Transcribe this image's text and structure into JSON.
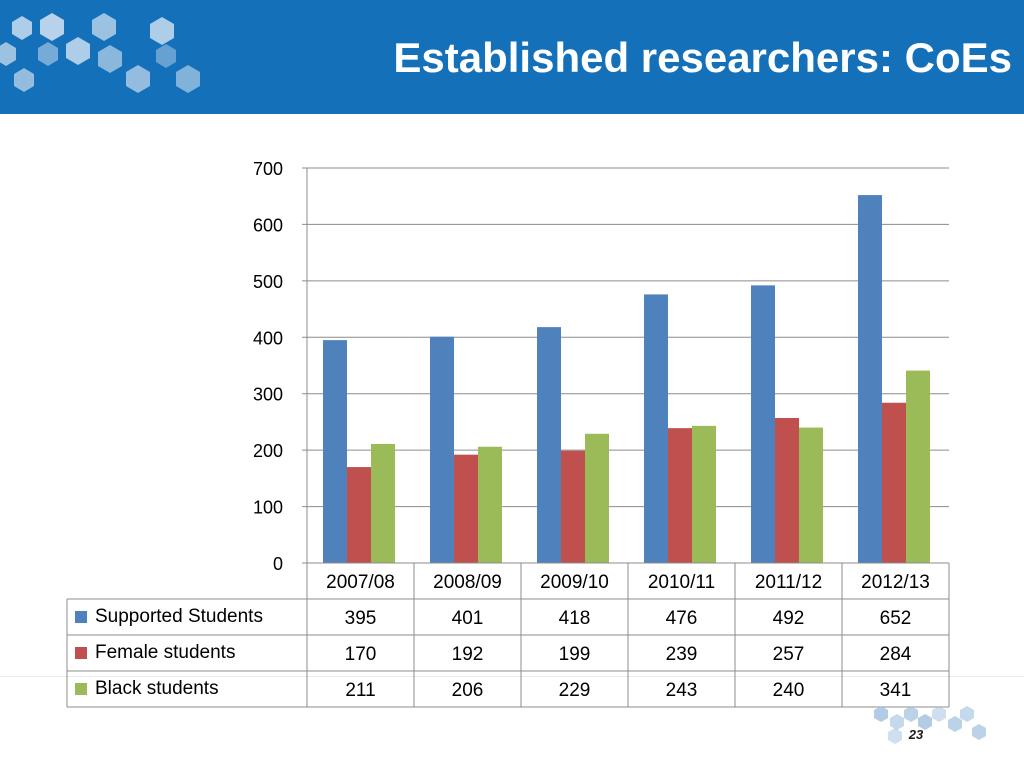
{
  "slide": {
    "title": "Established researchers: CoEs",
    "page_number": "23"
  },
  "colors": {
    "header": "#1470b8",
    "series": [
      "#4f81bd",
      "#c0504d",
      "#9bbb59"
    ]
  },
  "chart_data": {
    "type": "bar",
    "categories": [
      "2007/08",
      "2008/09",
      "2009/10",
      "2010/11",
      "2011/12",
      "2012/13"
    ],
    "series": [
      {
        "name": "Supported Students",
        "values": [
          395,
          401,
          418,
          476,
          492,
          652
        ],
        "color": "#4f81bd"
      },
      {
        "name": "Female students",
        "values": [
          170,
          192,
          199,
          239,
          257,
          284
        ],
        "color": "#c0504d"
      },
      {
        "name": "Black students",
        "values": [
          211,
          206,
          229,
          243,
          240,
          341
        ],
        "color": "#9bbb59"
      }
    ],
    "ylim": [
      0,
      700
    ],
    "yticks": [
      "0",
      "100",
      "200",
      "300",
      "400",
      "500",
      "600",
      "700"
    ],
    "grid": true,
    "legend": "data-table-left"
  }
}
